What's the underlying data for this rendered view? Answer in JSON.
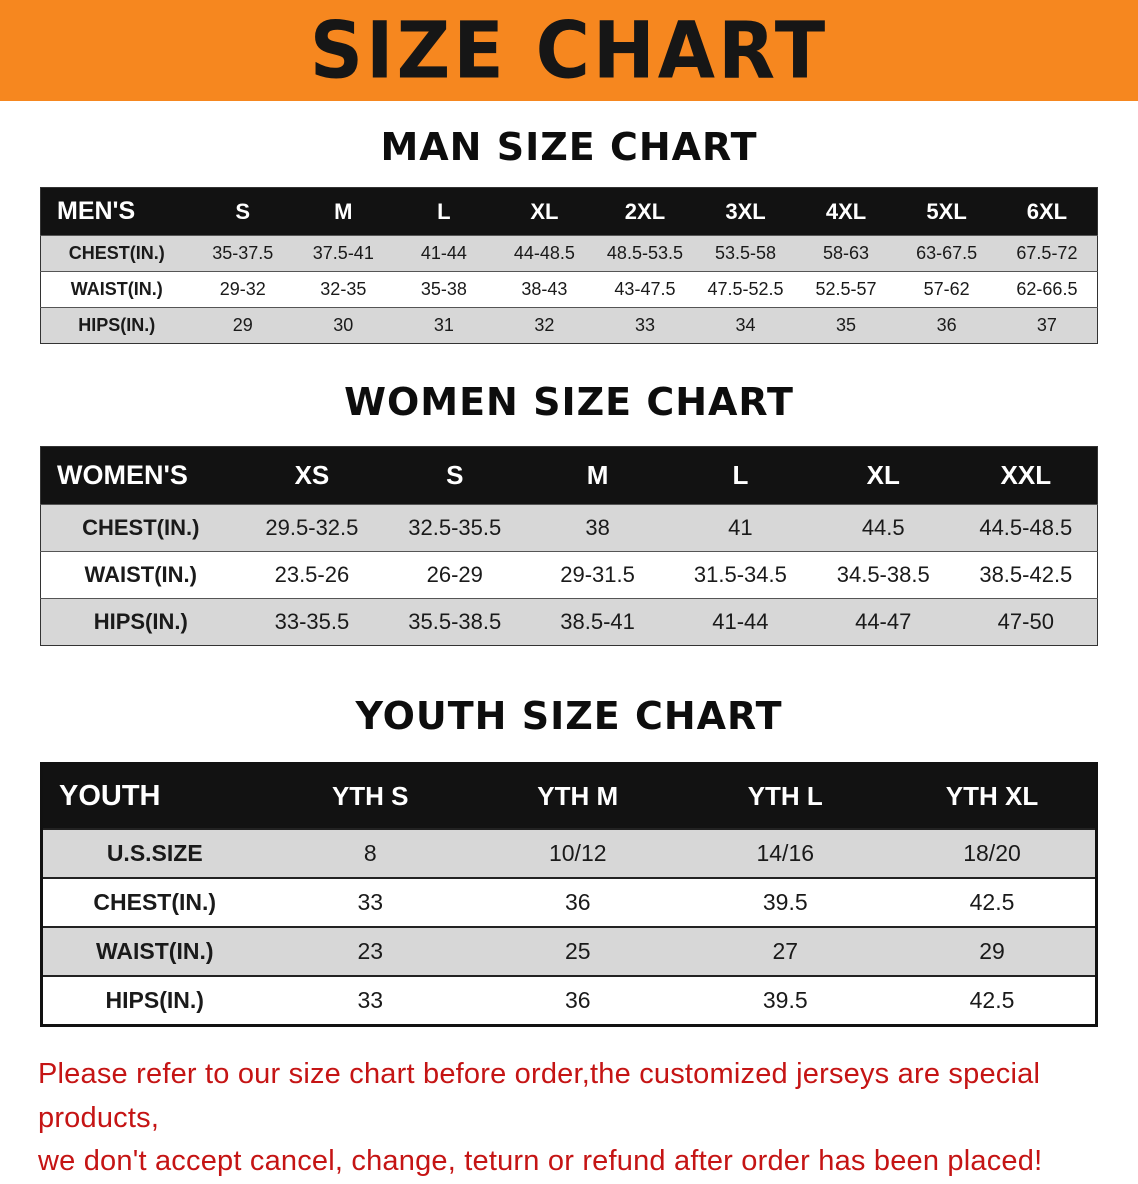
{
  "banner": {
    "title": "SIZE CHART",
    "bg_color": "#f6871f",
    "text_color": "#161616"
  },
  "colors": {
    "table_header_bg": "#121212",
    "stripe_gray": "#d7d7d7",
    "notice_red": "#c51414"
  },
  "sections": [
    {
      "key": "men",
      "heading": "MAN SIZE CHART",
      "header": [
        "MEN'S",
        "S",
        "M",
        "L",
        "XL",
        "2XL",
        "3XL",
        "4XL",
        "5XL",
        "6XL"
      ],
      "rows": [
        [
          "CHEST(IN.)",
          "35-37.5",
          "37.5-41",
          "41-44",
          "44-48.5",
          "48.5-53.5",
          "53.5-58",
          "58-63",
          "63-67.5",
          "67.5-72"
        ],
        [
          "WAIST(IN.)",
          "29-32",
          "32-35",
          "35-38",
          "38-43",
          "43-47.5",
          "47.5-52.5",
          "52.5-57",
          "57-62",
          "62-66.5"
        ],
        [
          "HIPS(IN.)",
          "29",
          "30",
          "31",
          "32",
          "33",
          "34",
          "35",
          "36",
          "37"
        ]
      ]
    },
    {
      "key": "women",
      "heading": "WOMEN SIZE CHART",
      "header": [
        "WOMEN'S",
        "XS",
        "S",
        "M",
        "L",
        "XL",
        "XXL"
      ],
      "rows": [
        [
          "CHEST(IN.)",
          "29.5-32.5",
          "32.5-35.5",
          "38",
          "41",
          "44.5",
          "44.5-48.5"
        ],
        [
          "WAIST(IN.)",
          "23.5-26",
          "26-29",
          "29-31.5",
          "31.5-34.5",
          "34.5-38.5",
          "38.5-42.5"
        ],
        [
          "HIPS(IN.)",
          "33-35.5",
          "35.5-38.5",
          "38.5-41",
          "41-44",
          "44-47",
          "47-50"
        ]
      ]
    },
    {
      "key": "youth",
      "heading": "YOUTH SIZE CHART",
      "header": [
        "YOUTH",
        "YTH S",
        "YTH M",
        "YTH L",
        "YTH XL"
      ],
      "rows": [
        [
          "U.S.SIZE",
          "8",
          "10/12",
          "14/16",
          "18/20"
        ],
        [
          "CHEST(IN.)",
          "33",
          "36",
          "39.5",
          "42.5"
        ],
        [
          "WAIST(IN.)",
          "23",
          "25",
          "27",
          "29"
        ],
        [
          "HIPS(IN.)",
          "33",
          "36",
          "39.5",
          "42.5"
        ]
      ]
    }
  ],
  "footer": {
    "line1": "Please refer to our size chart before order,the customized jerseys are special products,",
    "line2": "we don't accept cancel, change, teturn or refund after order has been placed!"
  }
}
